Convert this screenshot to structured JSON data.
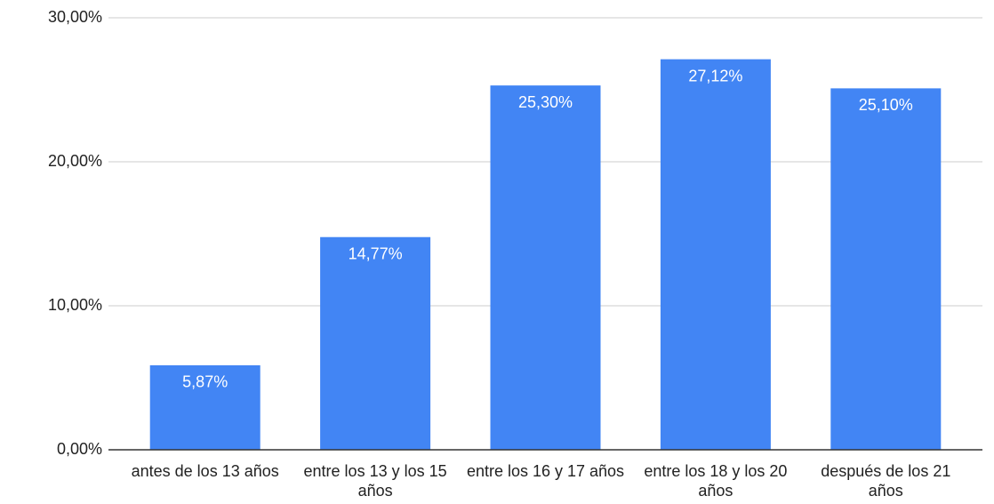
{
  "chart_data": {
    "type": "bar",
    "categories": [
      "antes de los 13 años",
      "entre los 13 y los 15 años",
      "entre los 16 y 17 años",
      "entre los 18 y los 20 años",
      "después de los 21 años"
    ],
    "values": [
      5.87,
      14.77,
      25.3,
      27.12,
      25.1
    ],
    "value_labels": [
      "5,87%",
      "14,77%",
      "25,30%",
      "27,12%",
      "25,10%"
    ],
    "color": "#4285f4",
    "ylim": [
      0,
      30
    ],
    "yticks": [
      {
        "value": 0,
        "label": "0,00%"
      },
      {
        "value": 10,
        "label": "10,00%"
      },
      {
        "value": 20,
        "label": "20,00%"
      },
      {
        "value": 30,
        "label": "30,00%"
      }
    ],
    "grid": true
  }
}
